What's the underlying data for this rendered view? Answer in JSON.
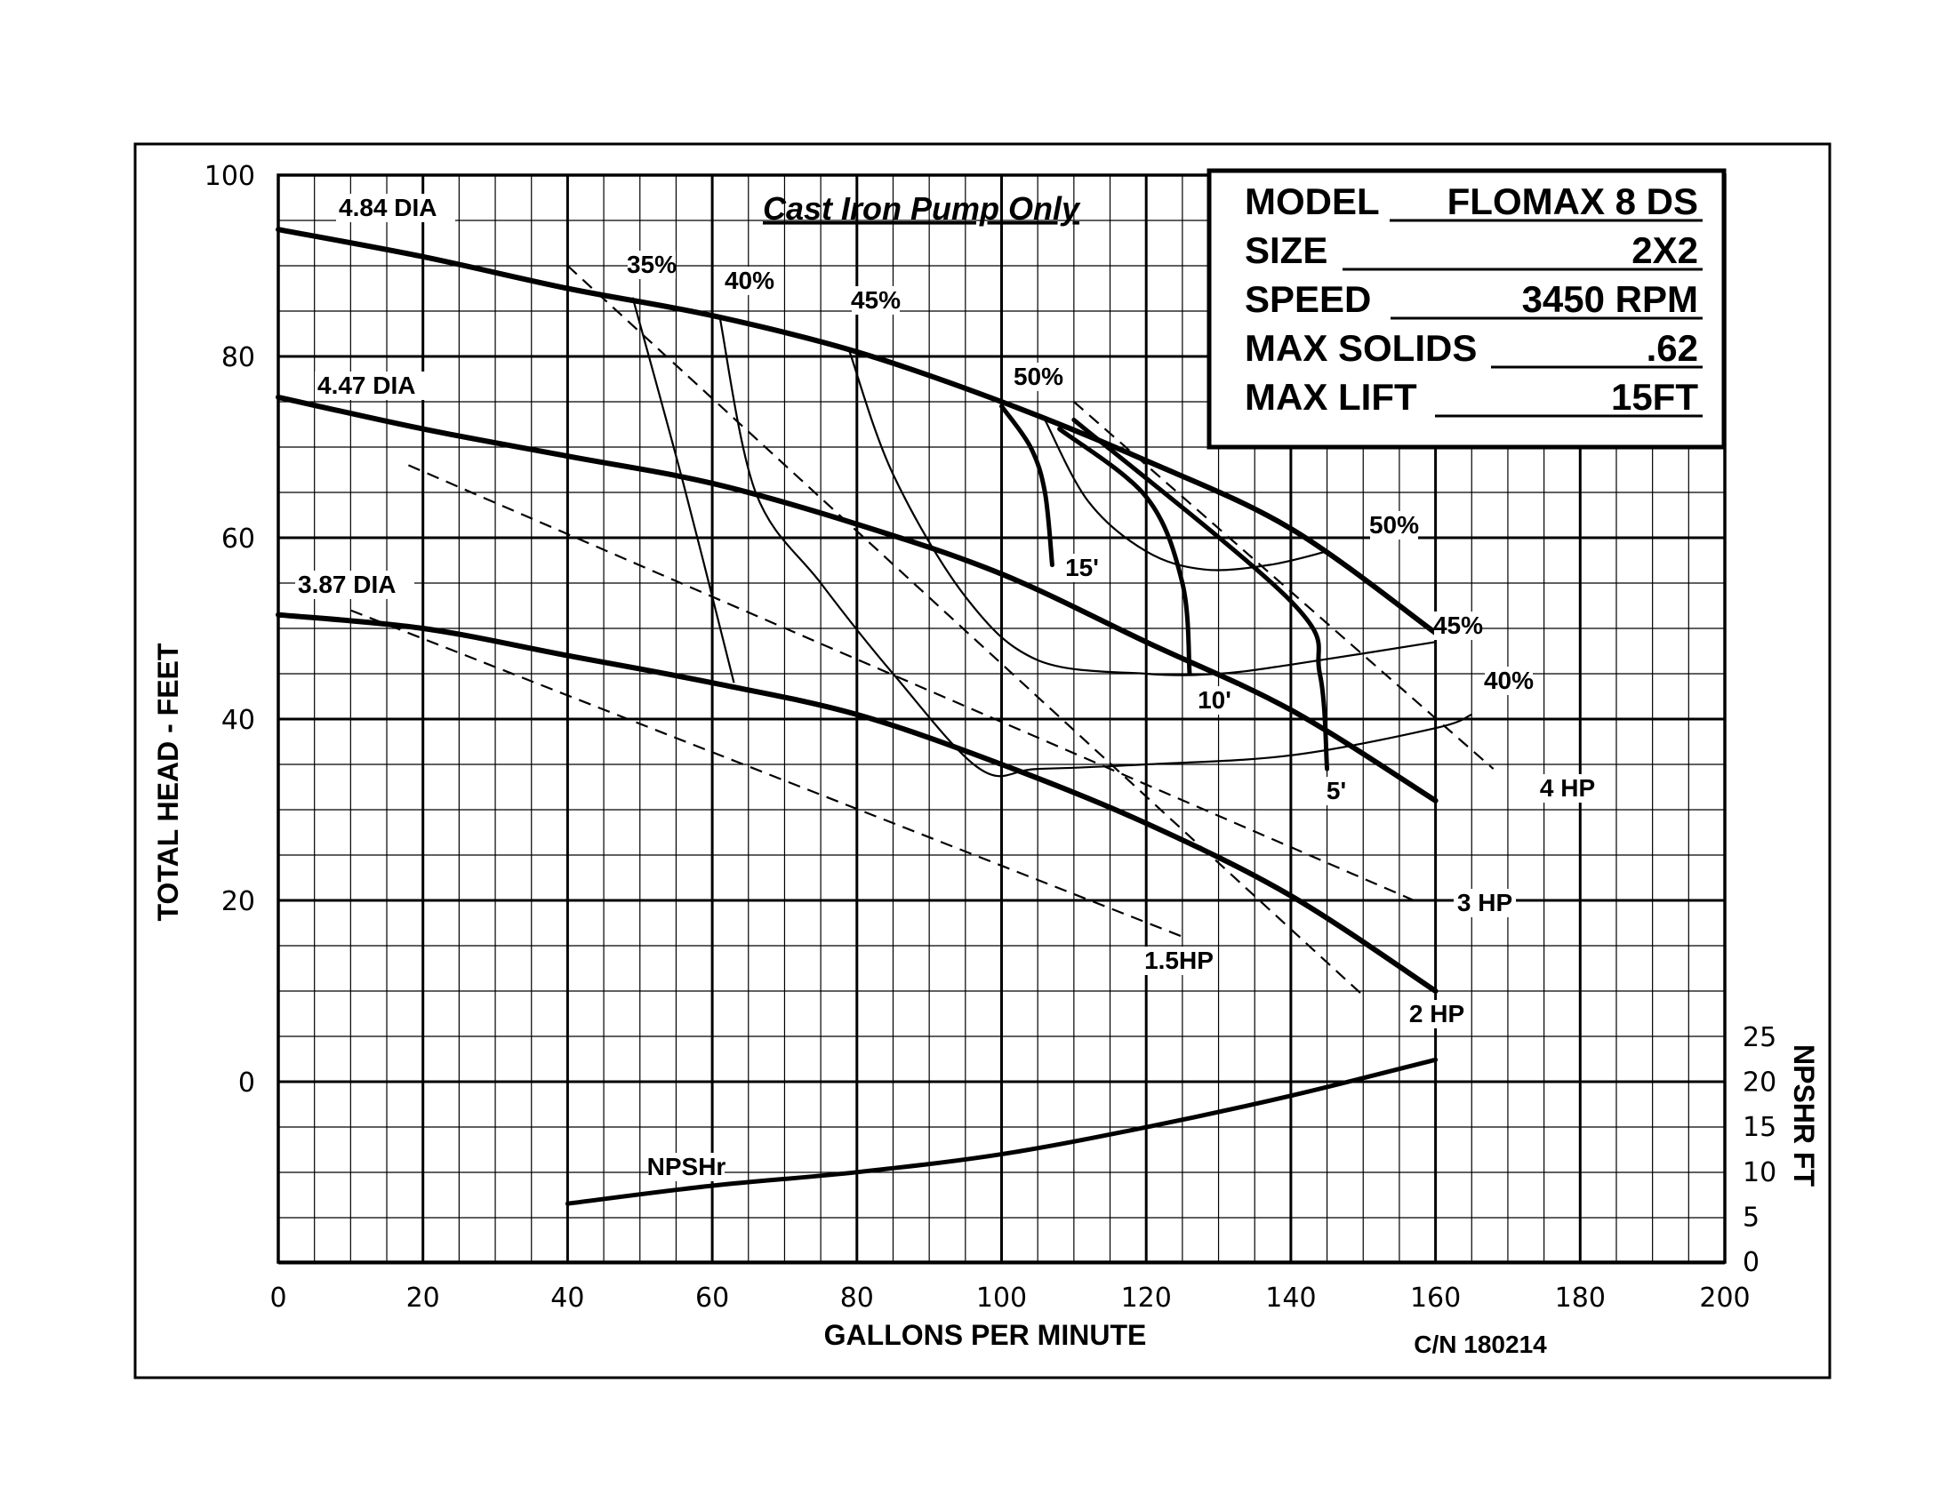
{
  "chart_data": {
    "type": "line",
    "title": "Cast Iron Pump Only",
    "xlabel": "GALLONS PER MINUTE",
    "ylabel": "TOTAL HEAD - FEET",
    "y2label": "NPSHR FT",
    "xlim": [
      0,
      200
    ],
    "ylim": [
      0,
      100
    ],
    "y2lim": [
      0,
      25
    ],
    "x_ticks": [
      "0",
      "20",
      "40",
      "60",
      "80",
      "100",
      "120",
      "140",
      "160",
      "180",
      "200"
    ],
    "y_ticks": [
      "100",
      "80",
      "60",
      "40",
      "20",
      "0"
    ],
    "y2_ticks": [
      "25",
      "20",
      "15",
      "10",
      "5",
      "0"
    ],
    "grid": true,
    "catalog_number": "C/N 180214",
    "info_box": [
      {
        "label": "MODEL",
        "value": "FLOMAX 8 DS"
      },
      {
        "label": "SIZE",
        "value": "2X2"
      },
      {
        "label": "SPEED",
        "value": "3450 RPM"
      },
      {
        "label": "MAX SOLIDS",
        "value": ".62"
      },
      {
        "label": "MAX LIFT",
        "value": "15FT"
      }
    ],
    "diameter_curves": [
      {
        "name": "4.84 DIA",
        "x": [
          0,
          20,
          40,
          60,
          80,
          100,
          120,
          140,
          160
        ],
        "y": [
          94,
          91,
          87.5,
          84.5,
          80.5,
          75,
          68.5,
          61,
          49.5
        ]
      },
      {
        "name": "4.47 DIA",
        "x": [
          0,
          20,
          40,
          60,
          80,
          100,
          120,
          140,
          160
        ],
        "y": [
          75.5,
          72,
          69,
          66,
          61.5,
          56,
          48.5,
          41,
          31
        ]
      },
      {
        "name": "3.87 DIA",
        "x": [
          0,
          20,
          40,
          60,
          80,
          100,
          120,
          140,
          160
        ],
        "y": [
          51.5,
          50,
          47,
          44,
          40.5,
          35,
          28.5,
          20.5,
          10
        ]
      }
    ],
    "efficiency_curves": [
      {
        "name": "35%",
        "x": [
          49,
          56,
          63
        ],
        "y": [
          86.5,
          66,
          44
        ]
      },
      {
        "name": "40%",
        "x": [
          61,
          66,
          75,
          85,
          97,
          105,
          120,
          140,
          160,
          165
        ],
        "y": [
          84.5,
          65,
          55,
          45,
          34.5,
          34.5,
          35,
          36,
          39,
          40.5
        ]
      },
      {
        "name": "45%",
        "x": [
          79,
          85,
          95,
          105,
          120,
          130,
          140,
          160
        ],
        "y": [
          80.5,
          67,
          53.5,
          46.5,
          45,
          45,
          46,
          48.5
        ]
      },
      {
        "name": "50%",
        "x": [
          106,
          112,
          120,
          128,
          137,
          145
        ],
        "y": [
          73,
          64,
          58.5,
          56.5,
          57,
          58.5
        ]
      }
    ],
    "hp_lines": [
      {
        "name": "1.5HP",
        "x": [
          10,
          125
        ],
        "y": [
          52,
          16
        ]
      },
      {
        "name": "2 HP",
        "x": [
          40,
          150
        ],
        "y": [
          90,
          9.5
        ]
      },
      {
        "name": "3 HP",
        "x": [
          18,
          157
        ],
        "y": [
          68,
          20
        ]
      },
      {
        "name": "4 HP",
        "x": [
          110,
          168
        ],
        "y": [
          75,
          34.5
        ]
      }
    ],
    "lift_curves": [
      {
        "name": "15'",
        "x": [
          100,
          104,
          106,
          107
        ],
        "y": [
          74.5,
          70,
          65,
          57
        ]
      },
      {
        "name": "10'",
        "x": [
          108,
          120,
          125,
          126
        ],
        "y": [
          72,
          64.5,
          55,
          45
        ]
      },
      {
        "name": "5'",
        "x": [
          110,
          140,
          144,
          145
        ],
        "y": [
          73,
          53,
          45,
          34.5
        ]
      }
    ],
    "npshr_curve": {
      "name": "NPSHr",
      "x": [
        40,
        60,
        80,
        100,
        120,
        140,
        160
      ],
      "y": [
        6.5,
        8.5,
        10,
        12,
        15,
        18.5,
        22.5
      ]
    }
  }
}
